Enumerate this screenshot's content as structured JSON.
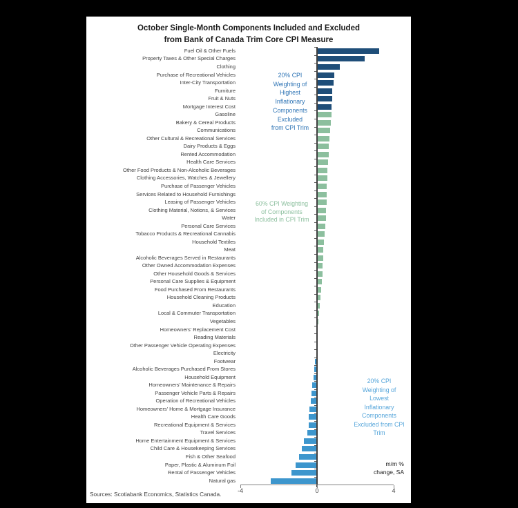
{
  "title": {
    "line1": "October Single-Month Components Included and Excluded",
    "line2": "from Bank of Canada Trim Core CPI Measure"
  },
  "source_note": "Sources: Scotiabank Economics, Statistics Canada.",
  "colors": {
    "background": "#000000",
    "panel": "#ffffff",
    "axis_line": "#404040",
    "x_axis_line": "#7f7f7f",
    "label_text": "#3f3f3f"
  },
  "chart_data": {
    "type": "bar",
    "orientation": "horizontal",
    "title_lines": [
      "October Single-Month Components Included and Excluded",
      "from Bank of Canada Trim Core CPI Measure"
    ],
    "xlabel": "m/m % change, SA",
    "axis_note_lines": [
      "m/m %",
      "change, SA"
    ],
    "xlim": [
      -4,
      4
    ],
    "x_ticks": [
      -4,
      0,
      4
    ],
    "grid": false,
    "legend_position": "none",
    "groups": {
      "excluded_high": {
        "label": "20% CPI Weighting of Highest Inflationary Components Excluded from CPI Trim",
        "color": "#1f4e79"
      },
      "included": {
        "label": "60% CPI Weighting of Components Included in CPI Trim",
        "color": "#8cbf9e"
      },
      "excluded_low": {
        "label": "20% CPI Weighting of Lowest Inflationary Components Excluded from CPI Trim",
        "color": "#3d96cd"
      }
    },
    "annotations": [
      {
        "name": "excluded-high-note",
        "color": "#2e74b5",
        "text_lines": [
          "20% CPI",
          "Weighting of",
          "Highest",
          "Inflationary",
          "Components",
          "Excluded",
          "from CPI Trim"
        ]
      },
      {
        "name": "included-note",
        "color": "#8cbf9e",
        "text_lines": [
          "60% CPI Weighting",
          "of Components",
          "Included in CPI Trim"
        ]
      },
      {
        "name": "excluded-low-note",
        "color": "#55a5da",
        "text_lines": [
          "20% CPI",
          "Weighting of",
          "Lowest",
          "Inflationary",
          "Components",
          "Excluded from CPI",
          "Trim"
        ]
      }
    ],
    "bars": [
      {
        "label": "Fuel Oil & Other Fuels",
        "value": 3.25,
        "group": "excluded_high"
      },
      {
        "label": "Property Taxes & Other Special Charges",
        "value": 2.5,
        "group": "excluded_high"
      },
      {
        "label": "Clothing",
        "value": 1.2,
        "group": "excluded_high"
      },
      {
        "label": "Purchase of Recreational Vehicles",
        "value": 0.9,
        "group": "excluded_high"
      },
      {
        "label": "Inter-City Transportation",
        "value": 0.85,
        "group": "excluded_high"
      },
      {
        "label": "Furniture",
        "value": 0.8,
        "group": "excluded_high"
      },
      {
        "label": "Fruit & Nuts",
        "value": 0.78,
        "group": "excluded_high"
      },
      {
        "label": "Mortgage Interest Cost",
        "value": 0.77,
        "group": "excluded_high"
      },
      {
        "label": "Gasoline",
        "value": 0.75,
        "group": "included"
      },
      {
        "label": "Bakery & Cereal Products",
        "value": 0.73,
        "group": "included"
      },
      {
        "label": "Communications",
        "value": 0.68,
        "group": "included"
      },
      {
        "label": "Other Cultural & Recreational Services",
        "value": 0.66,
        "group": "included"
      },
      {
        "label": "Dairy Products & Eggs",
        "value": 0.62,
        "group": "included"
      },
      {
        "label": "Rented Accommodation",
        "value": 0.6,
        "group": "included"
      },
      {
        "label": "Health Care Services",
        "value": 0.57,
        "group": "included"
      },
      {
        "label": "Other Food Products & Non-Alcoholic Beverages",
        "value": 0.55,
        "group": "included"
      },
      {
        "label": "Clothing Accessories, Watches & Jewellery",
        "value": 0.53,
        "group": "included"
      },
      {
        "label": "Purchase of Passenger Vehicles",
        "value": 0.52,
        "group": "included"
      },
      {
        "label": "Services Related to Household Furnishings",
        "value": 0.51,
        "group": "included"
      },
      {
        "label": "Leasing of Passenger Vehicles",
        "value": 0.5,
        "group": "included"
      },
      {
        "label": "Clothing Material, Notions, & Services",
        "value": 0.48,
        "group": "included"
      },
      {
        "label": "Water",
        "value": 0.46,
        "group": "included"
      },
      {
        "label": "Personal Care Services",
        "value": 0.43,
        "group": "included"
      },
      {
        "label": "Tobacco Products & Recreational Cannabis",
        "value": 0.4,
        "group": "included"
      },
      {
        "label": "Household Textiles",
        "value": 0.37,
        "group": "included"
      },
      {
        "label": "Meat",
        "value": 0.34,
        "group": "included"
      },
      {
        "label": "Alcoholic Beverages Served in Restaurants",
        "value": 0.32,
        "group": "included"
      },
      {
        "label": "Other Owned Accommodation Expenses",
        "value": 0.3,
        "group": "included"
      },
      {
        "label": "Other Household Goods & Services",
        "value": 0.28,
        "group": "included"
      },
      {
        "label": "Personal Care Supplies & Equipment",
        "value": 0.25,
        "group": "included"
      },
      {
        "label": "Food Purchased From Restaurants",
        "value": 0.2,
        "group": "included"
      },
      {
        "label": "Household Cleaning Products",
        "value": 0.17,
        "group": "included"
      },
      {
        "label": "Education",
        "value": 0.14,
        "group": "included"
      },
      {
        "label": "Local & Commuter Transportation",
        "value": 0.11,
        "group": "included"
      },
      {
        "label": "Vegetables",
        "value": 0.08,
        "group": "included"
      },
      {
        "label": "Homeowners' Replacement Cost",
        "value": 0.05,
        "group": "included"
      },
      {
        "label": "Reading Materials",
        "value": 0.03,
        "group": "included"
      },
      {
        "label": "Other Passenger Vehicle Operating Expenses",
        "value": 0.02,
        "group": "included"
      },
      {
        "label": "Electricity",
        "value": 0.0,
        "group": "included"
      },
      {
        "label": "Footwear",
        "value": -0.1,
        "group": "excluded_low"
      },
      {
        "label": "Alcoholic Beverages Purchased From Stores",
        "value": -0.15,
        "group": "excluded_low"
      },
      {
        "label": "Household Equipment",
        "value": -0.18,
        "group": "excluded_low"
      },
      {
        "label": "Homeowners' Maintenance & Repairs",
        "value": -0.25,
        "group": "excluded_low"
      },
      {
        "label": "Passenger Vehicle Parts & Repairs",
        "value": -0.3,
        "group": "excluded_low"
      },
      {
        "label": "Operation of Recreational Vehicles",
        "value": -0.33,
        "group": "excluded_low"
      },
      {
        "label": "Homeowners' Home & Mortgage Insurance",
        "value": -0.4,
        "group": "excluded_low"
      },
      {
        "label": "Health Care Goods",
        "value": -0.43,
        "group": "excluded_low"
      },
      {
        "label": "Recreational Equipment & Services",
        "value": -0.45,
        "group": "excluded_low"
      },
      {
        "label": "Travel Services",
        "value": -0.5,
        "group": "excluded_low"
      },
      {
        "label": "Home Entertainment Equipment & Services",
        "value": -0.68,
        "group": "excluded_low"
      },
      {
        "label": "Child Care & Housekeeping Services",
        "value": -0.78,
        "group": "excluded_low"
      },
      {
        "label": "Fish & Other Seafood",
        "value": -0.95,
        "group": "excluded_low"
      },
      {
        "label": "Paper, Plastic & Aluminum Foil",
        "value": -1.1,
        "group": "excluded_low"
      },
      {
        "label": "Rental of Passenger Vehicles",
        "value": -1.35,
        "group": "excluded_low"
      },
      {
        "label": "Natural gas",
        "value": -2.4,
        "group": "excluded_low"
      }
    ]
  }
}
